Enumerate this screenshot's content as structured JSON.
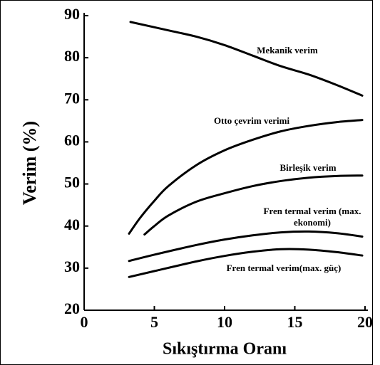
{
  "chart_data": {
    "type": "line",
    "xlabel": "Sıkıştırma Oranı",
    "ylabel": "Verim (%)",
    "xlim": [
      0,
      20
    ],
    "ylim": [
      20,
      90
    ],
    "xticks": [
      0,
      5,
      10,
      15,
      20
    ],
    "yticks": [
      20,
      30,
      40,
      50,
      60,
      70,
      80,
      90
    ],
    "series": [
      {
        "name": "Mekanik verim",
        "color": "#000000",
        "x": [
          3.3,
          6,
          8,
          10,
          12,
          14,
          16,
          18,
          19.8
        ],
        "values": [
          88.5,
          86.5,
          85,
          83,
          80.5,
          78,
          76,
          73.5,
          71
        ]
      },
      {
        "name": "Otto çevrim verimi",
        "color": "#000000",
        "x": [
          3.2,
          4,
          5,
          6,
          8,
          10,
          12,
          14,
          16,
          18,
          19.8
        ],
        "values": [
          38.2,
          42,
          46,
          49.5,
          54.5,
          58,
          60.5,
          62.5,
          63.8,
          64.7,
          65.2
        ]
      },
      {
        "name": "Birleşik verim",
        "color": "#000000",
        "x": [
          4.3,
          5,
          6,
          8,
          10,
          12,
          14,
          16,
          18,
          19.8
        ],
        "values": [
          38,
          40,
          42.5,
          45.8,
          47.8,
          49.5,
          50.7,
          51.5,
          51.9,
          52
        ]
      },
      {
        "name": "Fren termal verim (max. ekonomi)",
        "color": "#000000",
        "x": [
          3.2,
          5,
          8,
          10,
          12,
          14,
          16,
          18,
          19.8
        ],
        "values": [
          31.7,
          33.2,
          35.5,
          36.8,
          37.8,
          38.5,
          38.7,
          38.3,
          37.5
        ]
      },
      {
        "name": "Fren termal verim(max. güç)",
        "color": "#000000",
        "x": [
          3.2,
          5,
          8,
          10,
          12,
          14,
          16,
          18,
          19.8
        ],
        "values": [
          27.9,
          29.3,
          31.6,
          32.9,
          33.9,
          34.5,
          34.4,
          33.8,
          33
        ]
      }
    ]
  }
}
